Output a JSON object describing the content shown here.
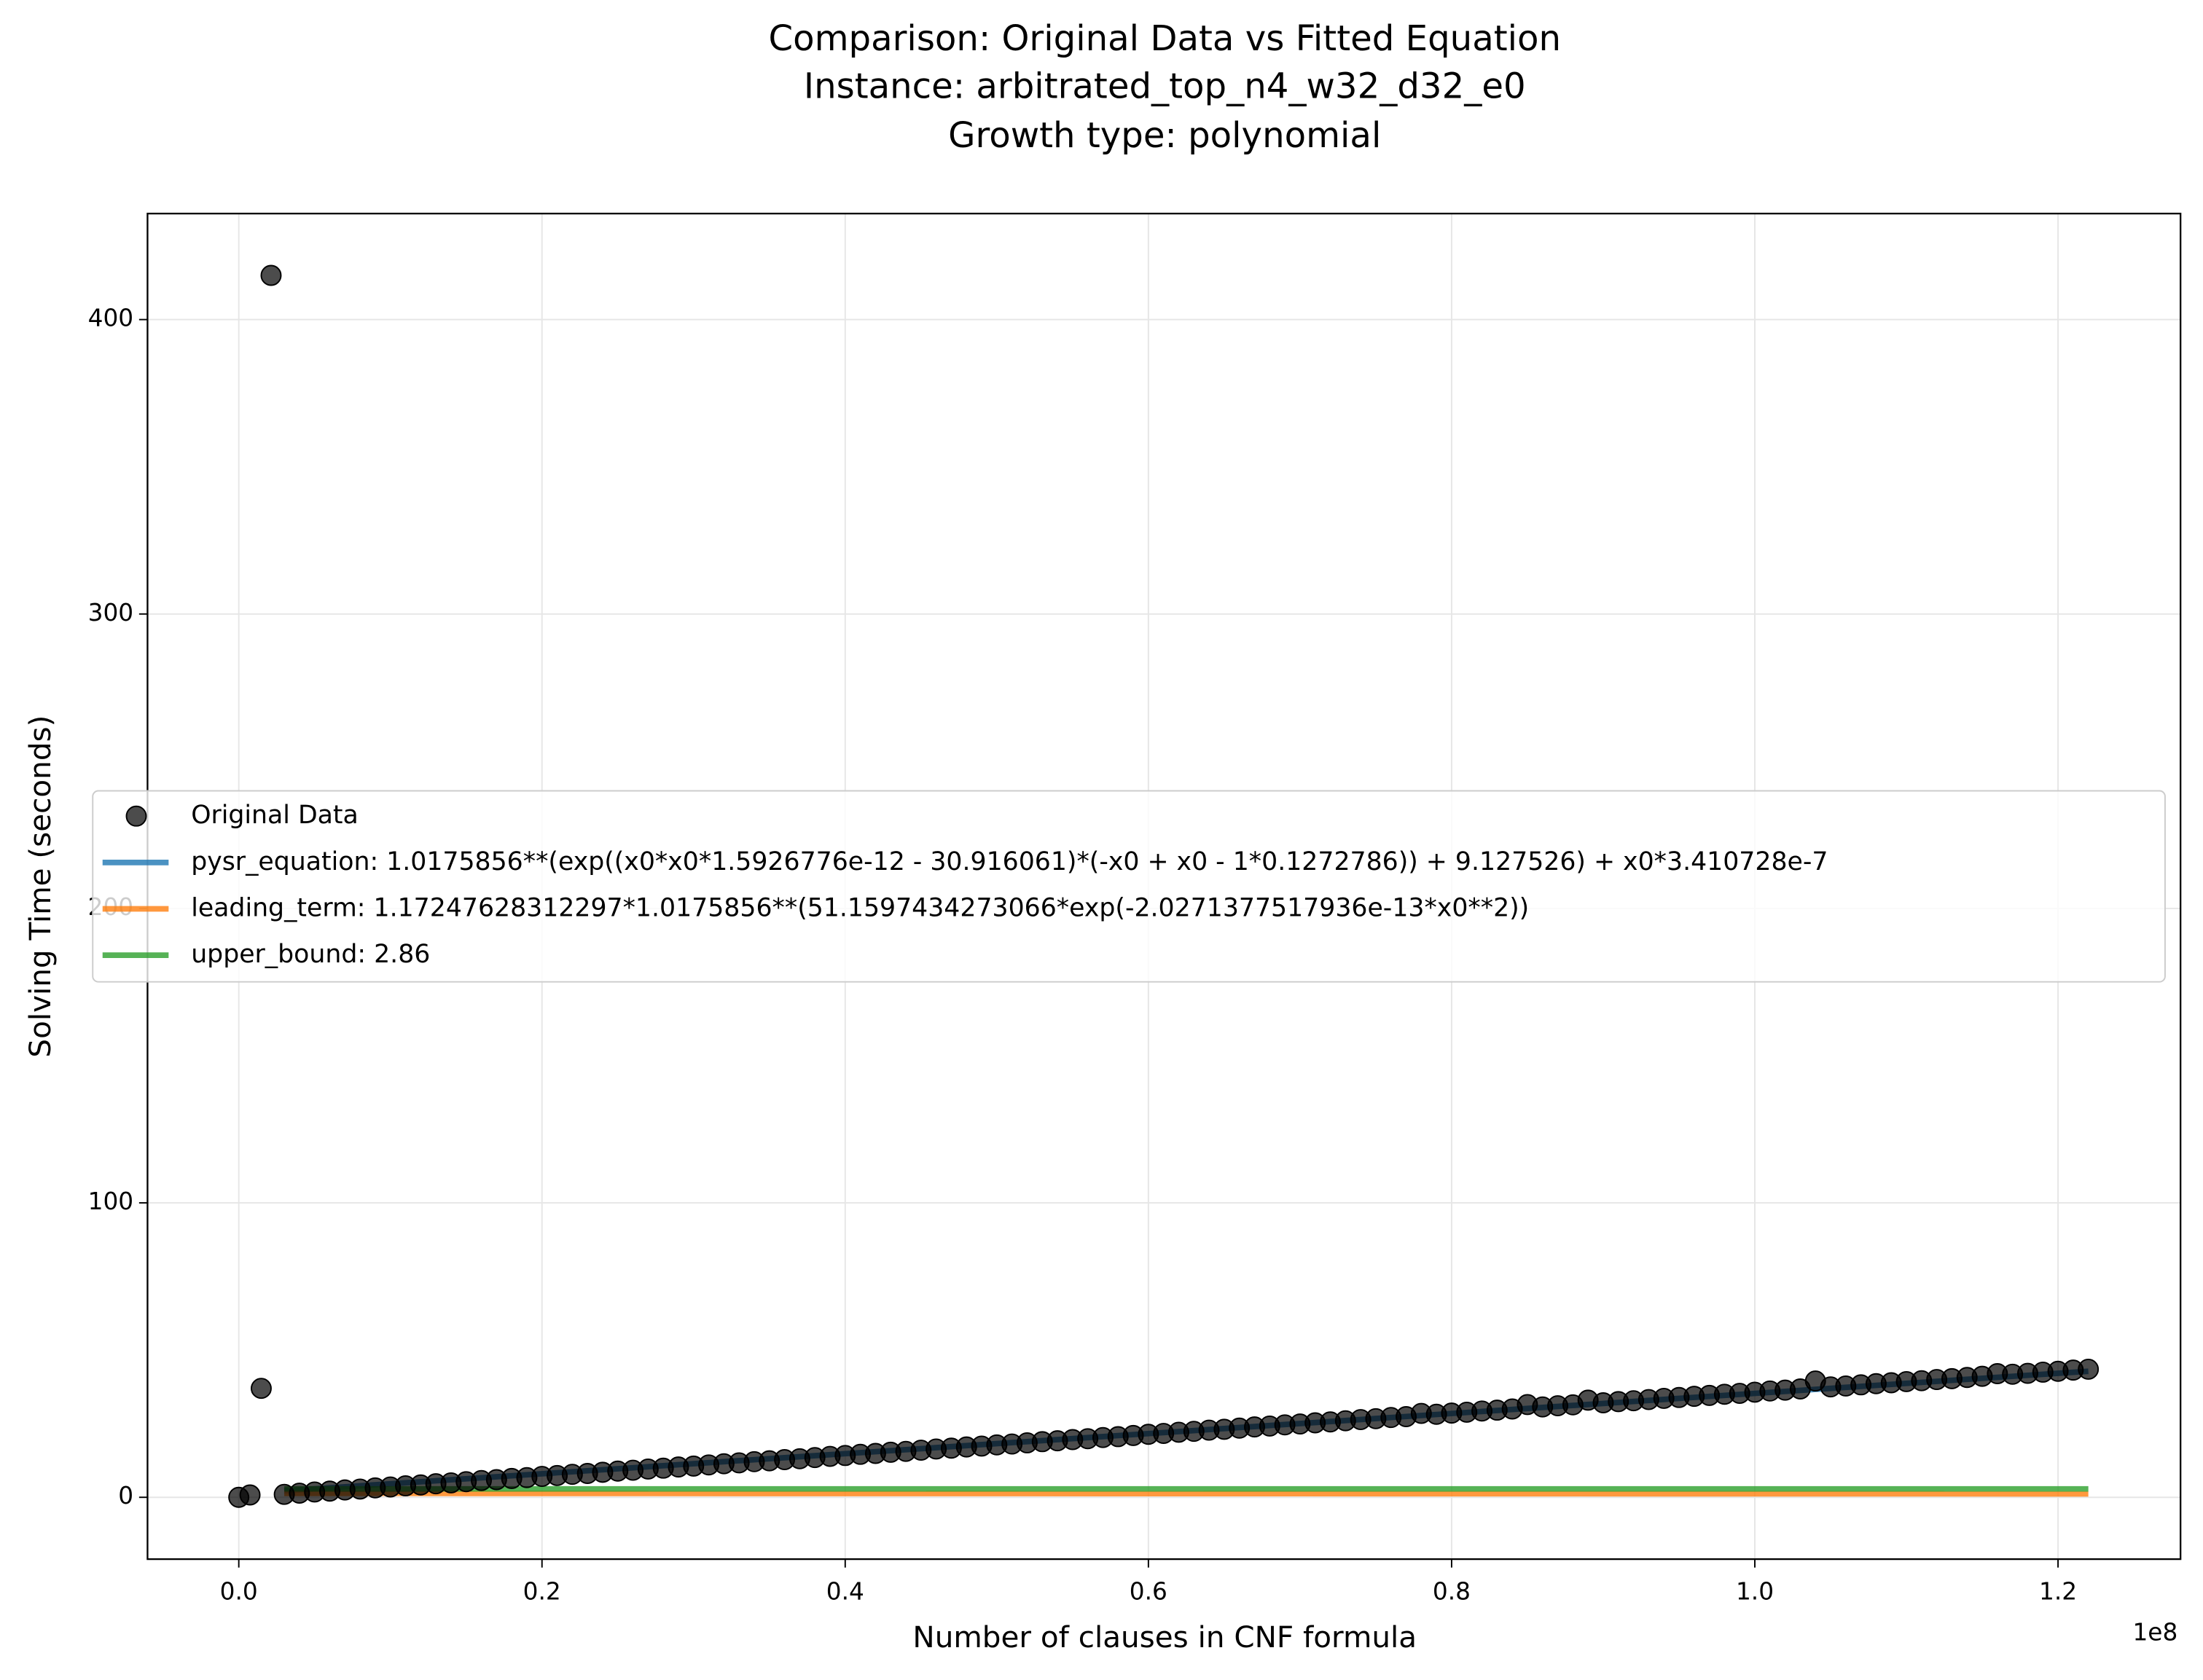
{
  "chart_data": {
    "type": "scatter",
    "title": [
      "Comparison: Original Data vs Fitted Equation",
      "Instance: arbitrated_top_n4_w32_d32_e0",
      "Growth type: polynomial"
    ],
    "xlabel": "Number of clauses in CNF formula",
    "ylabel": "Solving Time (seconds)",
    "x_offset_label": "1e8",
    "xlim": [
      -6020000,
      128080000
    ],
    "ylim": [
      -21,
      436
    ],
    "xticks": [
      {
        "value": 0,
        "label": "0.0"
      },
      {
        "value": 20000000,
        "label": "0.2"
      },
      {
        "value": 40000000,
        "label": "0.4"
      },
      {
        "value": 60000000,
        "label": "0.6"
      },
      {
        "value": 80000000,
        "label": "0.8"
      },
      {
        "value": 100000000,
        "label": "1.0"
      },
      {
        "value": 120000000,
        "label": "1.2"
      }
    ],
    "yticks": [
      0,
      100,
      200,
      300,
      400
    ],
    "grid": true,
    "legend": "center left",
    "series": [
      {
        "name": "Original Data",
        "type": "scatter",
        "color": "#000000",
        "x": [
          0,
          740000,
          1480000,
          2130000,
          3000000,
          4000000,
          5000000,
          6000000,
          7000000,
          8000000,
          9000000,
          10000000,
          11000000,
          12000000,
          13000000,
          14000000,
          15000000,
          16000000,
          17000000,
          18000000,
          19000000,
          20000000,
          21000000,
          22000000,
          23000000,
          24000000,
          25000000,
          26000000,
          27000000,
          28000000,
          29000000,
          30000000,
          31000000,
          32000000,
          33000000,
          34000000,
          35000000,
          36000000,
          37000000,
          38000000,
          39000000,
          40000000,
          41000000,
          42000000,
          43000000,
          44000000,
          45000000,
          46000000,
          47000000,
          48000000,
          49000000,
          50000000,
          51000000,
          52000000,
          53000000,
          54000000,
          55000000,
          56000000,
          57000000,
          58000000,
          59000000,
          60000000,
          61000000,
          62000000,
          63000000,
          64000000,
          65000000,
          66000000,
          67000000,
          68000000,
          69000000,
          70000000,
          71000000,
          72000000,
          73000000,
          74000000,
          75000000,
          76000000,
          77000000,
          78000000,
          79000000,
          80000000,
          81000000,
          82000000,
          83000000,
          84000000,
          85000000,
          86000000,
          87000000,
          88000000,
          89000000,
          90000000,
          91000000,
          92000000,
          93000000,
          94000000,
          95000000,
          96000000,
          97000000,
          98000000,
          99000000,
          100000000,
          101000000,
          102000000,
          103000000,
          104000000,
          105000000,
          106000000,
          107000000,
          108000000,
          109000000,
          110000000,
          111000000,
          112000000,
          113000000,
          114000000,
          115000000,
          116000000,
          117000000,
          118000000,
          119000000,
          120000000,
          121000000,
          122000000
        ],
        "values": [
          0,
          0.8,
          37,
          415,
          1.0,
          1.4,
          1.8,
          2.1,
          2.5,
          2.8,
          3.2,
          3.5,
          3.9,
          4.2,
          4.6,
          4.9,
          5.3,
          5.7,
          6.0,
          6.4,
          6.7,
          7.1,
          7.4,
          7.8,
          8.1,
          8.5,
          8.9,
          9.2,
          9.6,
          9.9,
          10.3,
          10.6,
          11.0,
          11.4,
          11.7,
          12.1,
          12.4,
          12.8,
          13.1,
          13.5,
          13.9,
          14.2,
          14.6,
          14.9,
          15.3,
          15.6,
          16.0,
          16.4,
          16.7,
          17.1,
          17.4,
          17.8,
          18.1,
          18.5,
          18.9,
          19.2,
          19.6,
          19.9,
          20.3,
          20.6,
          21.0,
          21.4,
          21.7,
          22.1,
          22.4,
          22.8,
          23.1,
          23.5,
          23.9,
          24.2,
          24.6,
          24.9,
          25.3,
          25.6,
          26.0,
          26.4,
          26.7,
          27.1,
          27.4,
          28.5,
          28.2,
          28.6,
          28.9,
          29.3,
          29.6,
          30.0,
          31.5,
          30.7,
          31.1,
          31.4,
          33.0,
          32.1,
          32.5,
          32.8,
          33.2,
          33.6,
          33.9,
          34.3,
          34.6,
          35.0,
          35.3,
          35.7,
          36.1,
          36.4,
          36.8,
          39.5,
          37.5,
          37.8,
          38.2,
          38.6,
          38.9,
          39.3,
          39.6,
          40.0,
          40.3,
          40.7,
          41.1,
          42.0,
          41.8,
          42.1,
          42.5,
          42.8,
          43.2,
          43.5
        ]
      },
      {
        "name": "pysr_equation: 1.0175856**(exp((x0*x0*1.5926776e-12 - 30.916061)*(-x0 + x0 - 1*0.1272786)) + 9.127526) + x0*3.410728e-7",
        "type": "line",
        "color": "#1f77b4",
        "x": [
          3000000,
          122000000
        ],
        "values": [
          2.2,
          42.8
        ]
      },
      {
        "name": "leading_term: 1.17247628312297*1.0175856**(51.1597434273066*exp(-2.0271377517936e-13*x0**2))",
        "type": "line",
        "color": "#ff7f0e",
        "x": [
          3000000,
          122000000
        ],
        "values": [
          1.35,
          1.17
        ]
      },
      {
        "name": "upper_bound: 2.86",
        "type": "line",
        "color": "#2ca02c",
        "x": [
          3000000,
          122000000
        ],
        "values": [
          2.86,
          2.86
        ]
      }
    ]
  }
}
